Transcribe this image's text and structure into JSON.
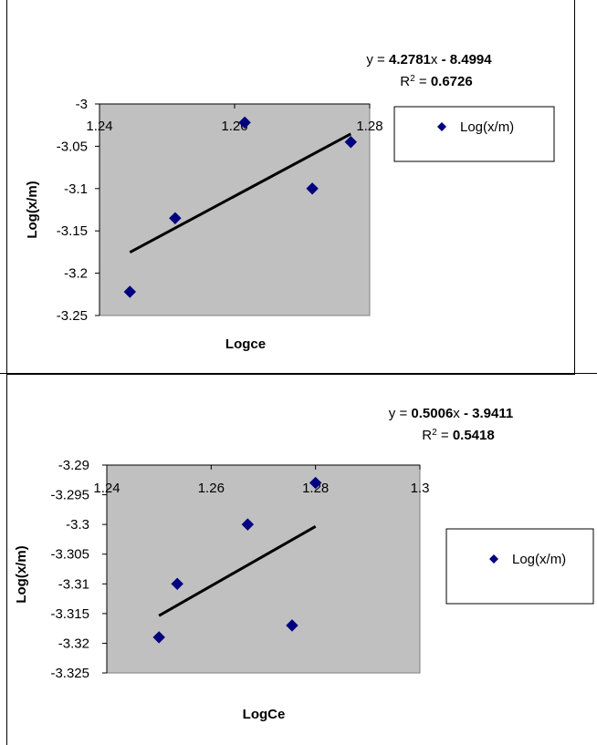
{
  "chart_data": [
    {
      "type": "scatter",
      "xlabel": "Logce",
      "ylabel": "Log(x/m)",
      "xlim": [
        1.24,
        1.28
      ],
      "ylim": [
        -3.25,
        -3.0
      ],
      "x_ticks": [
        "1.24",
        "1.26",
        "1.28"
      ],
      "y_ticks": [
        "-3",
        "-3.05",
        "-3.1",
        "-3.15",
        "-3.2",
        "-3.25"
      ],
      "series": [
        {
          "name": "Log(x/m)",
          "x": [
            1.2445,
            1.2512,
            1.2615,
            1.2715,
            1.2772
          ],
          "y": [
            -3.222,
            -3.135,
            -3.022,
            -3.1,
            -3.045
          ]
        }
      ],
      "trendline": {
        "equation": {
          "prefix": "y = ",
          "slope": "4.2781",
          "mid": "x ",
          "intercept": "- 8.4994"
        },
        "r2": {
          "prefix": "R",
          "sup": "2",
          "eq": " = ",
          "value": "0.6726"
        },
        "slope": 4.2781,
        "intercept": -8.4994,
        "x_range": [
          1.2445,
          1.2772
        ]
      },
      "grid": false,
      "legend": "right",
      "colors": {
        "plot_bg": "#c0c0c0",
        "marker": "#000080",
        "trendline": "#000000"
      }
    },
    {
      "type": "scatter",
      "xlabel": "LogCe",
      "ylabel": "Log(x/m)",
      "xlim": [
        1.24,
        1.3
      ],
      "ylim": [
        -3.325,
        -3.29
      ],
      "x_ticks": [
        "1.24",
        "1.26",
        "1.28",
        "1.3"
      ],
      "y_ticks": [
        "-3.29",
        "-3.295",
        "-3.3",
        "-3.305",
        "-3.31",
        "-3.315",
        "-3.32",
        "-3.325"
      ],
      "series": [
        {
          "name": "Log(x/m)",
          "x": [
            1.25,
            1.2535,
            1.267,
            1.2755,
            1.28
          ],
          "y": [
            -3.319,
            -3.31,
            -3.3,
            -3.317,
            -3.293
          ]
        }
      ],
      "trendline": {
        "equation": {
          "prefix": "y = ",
          "slope": "0.5006",
          "mid": "x ",
          "intercept": "- 3.9411"
        },
        "r2": {
          "prefix": "R",
          "sup": "2",
          "eq": " = ",
          "value": "0.5418"
        },
        "slope": 0.5006,
        "intercept": -3.9411,
        "x_range": [
          1.25,
          1.28
        ]
      },
      "grid": false,
      "legend": "right",
      "colors": {
        "plot_bg": "#c0c0c0",
        "marker": "#000080",
        "trendline": "#000000"
      }
    }
  ]
}
